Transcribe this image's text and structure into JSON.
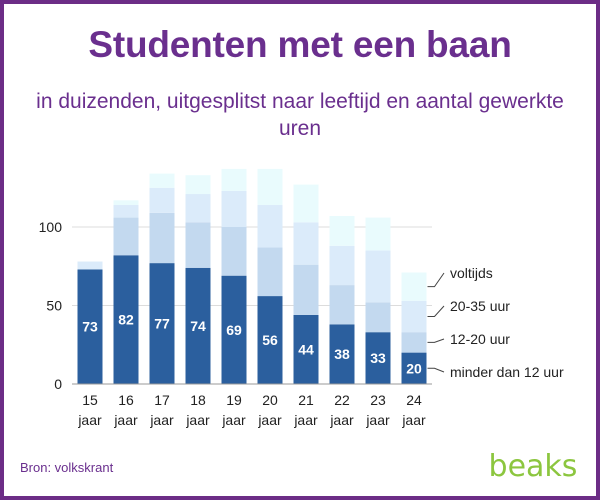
{
  "title": "Studenten met een baan",
  "subtitle": "in duizenden, uitgesplitst naar leeftijd en aantal gewerkte uren",
  "source": "Bron: volkskrant",
  "logo_text": "beaks",
  "colors": {
    "title": "#6a2f8e",
    "frame": "#6c2d86",
    "logo": "#8cc63f",
    "series": [
      "#2b5f9e",
      "#c3d9ef",
      "#dbebfa",
      "#e9fbfd"
    ]
  },
  "chart_data": {
    "type": "bar",
    "stacked": true,
    "categories": [
      "15",
      "16",
      "17",
      "18",
      "19",
      "20",
      "21",
      "22",
      "23",
      "24"
    ],
    "category_sublabel": "jaar",
    "ylim": [
      0,
      150
    ],
    "yticks": [
      0,
      50,
      100
    ],
    "grid": true,
    "legend_placement": "right",
    "series": [
      {
        "name": "minder dan 12 uur",
        "values": [
          73,
          82,
          77,
          74,
          69,
          56,
          44,
          38,
          33,
          20
        ],
        "show_labels": true
      },
      {
        "name": "12-20 uur",
        "values": [
          0,
          24,
          32,
          29,
          31,
          31,
          32,
          25,
          19,
          13
        ]
      },
      {
        "name": "20-35 uur",
        "values": [
          5,
          8,
          16,
          18,
          23,
          27,
          27,
          25,
          33,
          20
        ]
      },
      {
        "name": "voltijds",
        "values": [
          0,
          3,
          9,
          12,
          14,
          23,
          24,
          19,
          21,
          18
        ]
      }
    ]
  }
}
